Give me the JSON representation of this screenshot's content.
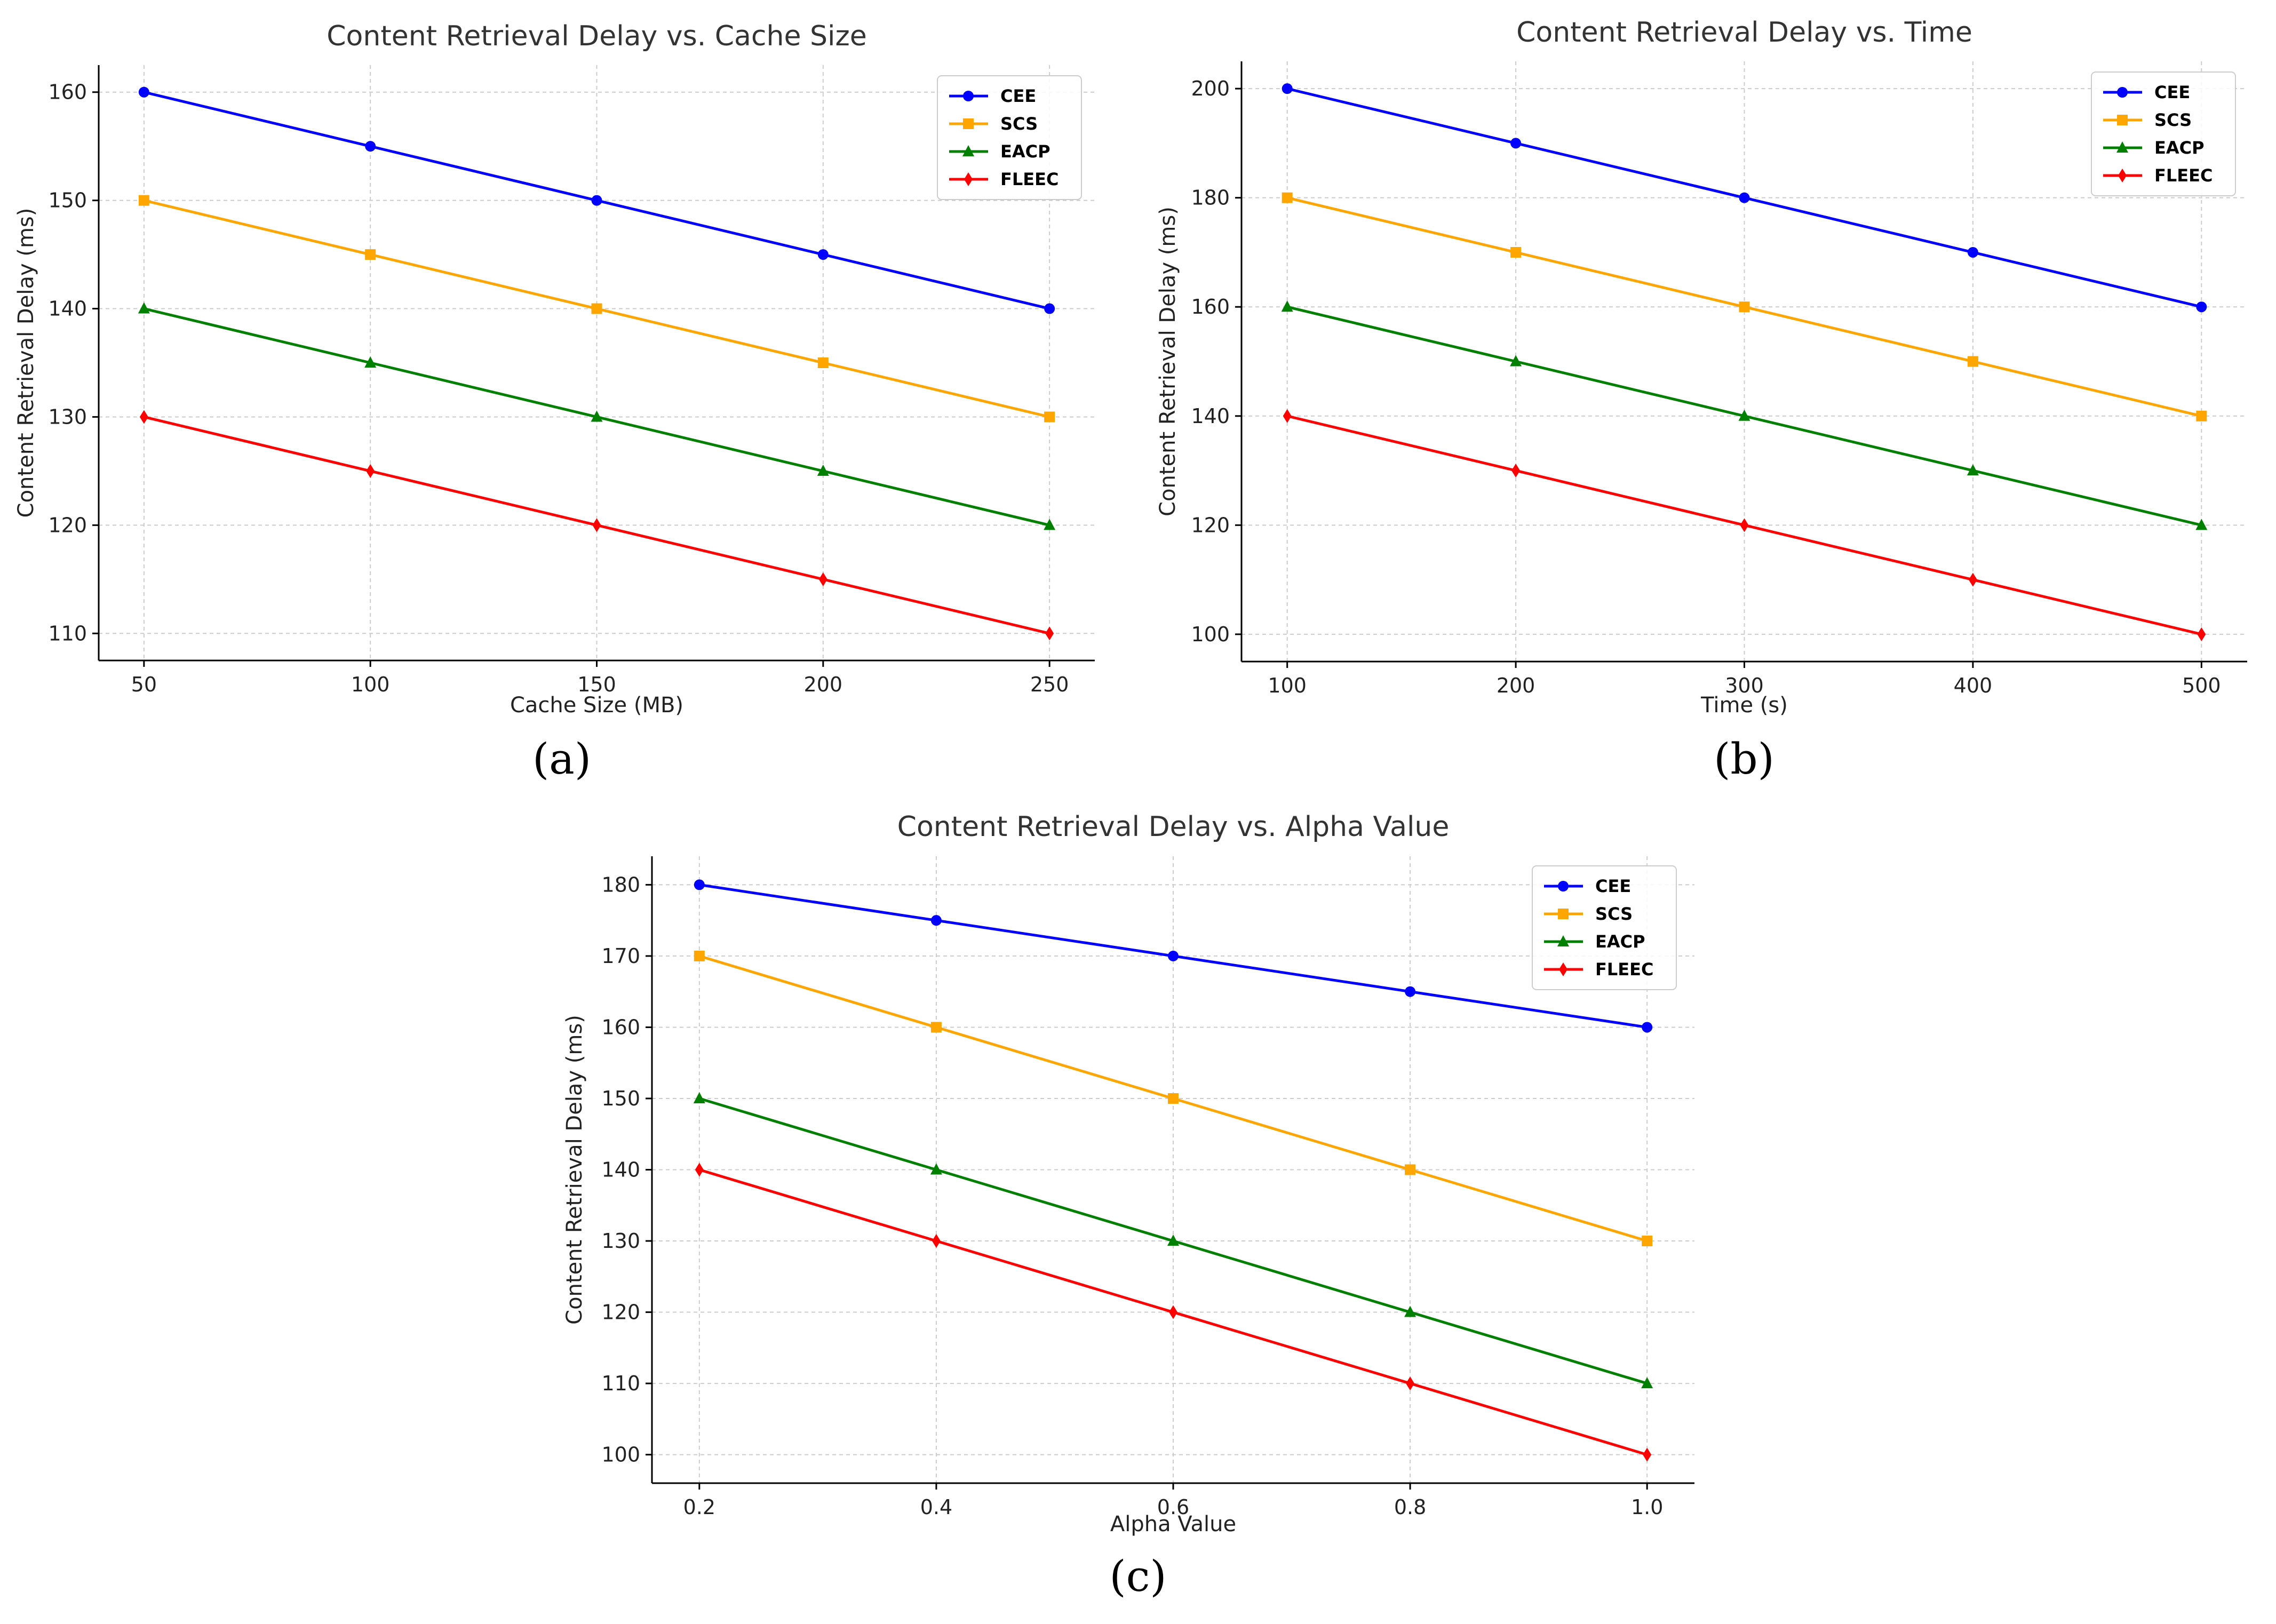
{
  "chart_data": [
    {
      "type": "line",
      "caption": "(a)",
      "title": "Content Retrieval Delay vs. Cache Size",
      "xlabel": "Cache Size (MB)",
      "ylabel": "Content Retrieval Delay (ms)",
      "x": [
        50,
        100,
        150,
        200,
        250
      ],
      "xticks": [
        "50",
        "100",
        "150",
        "200",
        "250"
      ],
      "xlim": [
        40,
        260
      ],
      "ylim": [
        107.5,
        162.5
      ],
      "yticks": [
        110,
        120,
        130,
        140,
        150,
        160
      ],
      "grid": true,
      "legend_position": "top-right",
      "series": [
        {
          "name": "CEE",
          "color": "#0000ff",
          "marker": "circle",
          "values": [
            160,
            155,
            150,
            145,
            140
          ]
        },
        {
          "name": "SCS",
          "color": "#ffa500",
          "marker": "square",
          "values": [
            150,
            145,
            140,
            135,
            130
          ]
        },
        {
          "name": "EACP",
          "color": "#008000",
          "marker": "triangle",
          "values": [
            140,
            135,
            130,
            125,
            120
          ]
        },
        {
          "name": "FLEEC",
          "color": "#ff0000",
          "marker": "diamond",
          "values": [
            130,
            125,
            120,
            115,
            110
          ]
        }
      ]
    },
    {
      "type": "line",
      "caption": "(b)",
      "title": "Content Retrieval Delay vs. Time",
      "xlabel": "Time (s)",
      "ylabel": "Content Retrieval Delay (ms)",
      "x": [
        100,
        200,
        300,
        400,
        500
      ],
      "xticks": [
        "100",
        "200",
        "300",
        "400",
        "500"
      ],
      "xlim": [
        80,
        520
      ],
      "ylim": [
        95,
        205
      ],
      "yticks": [
        100,
        120,
        140,
        160,
        180,
        200
      ],
      "grid": true,
      "legend_position": "top-right",
      "series": [
        {
          "name": "CEE",
          "color": "#0000ff",
          "marker": "circle",
          "values": [
            200,
            190,
            180,
            170,
            160
          ]
        },
        {
          "name": "SCS",
          "color": "#ffa500",
          "marker": "square",
          "values": [
            180,
            170,
            160,
            150,
            140
          ]
        },
        {
          "name": "EACP",
          "color": "#008000",
          "marker": "triangle",
          "values": [
            160,
            150,
            140,
            130,
            120
          ]
        },
        {
          "name": "FLEEC",
          "color": "#ff0000",
          "marker": "diamond",
          "values": [
            140,
            130,
            120,
            110,
            100
          ]
        }
      ]
    },
    {
      "type": "line",
      "caption": "(c)",
      "title": "Content Retrieval Delay vs. Alpha Value",
      "xlabel": "Alpha Value",
      "ylabel": "Content Retrieval Delay (ms)",
      "x": [
        0.2,
        0.4,
        0.6,
        0.8,
        1.0
      ],
      "xticks": [
        "0.2",
        "0.4",
        "0.6",
        "0.8",
        "1.0"
      ],
      "xlim": [
        0.16,
        1.04
      ],
      "ylim": [
        96,
        184
      ],
      "yticks": [
        100,
        110,
        120,
        130,
        140,
        150,
        160,
        170,
        180
      ],
      "grid": true,
      "legend_position": "top-right",
      "series": [
        {
          "name": "CEE",
          "color": "#0000ff",
          "marker": "circle",
          "values": [
            180,
            175,
            170,
            165,
            160
          ]
        },
        {
          "name": "SCS",
          "color": "#ffa500",
          "marker": "square",
          "values": [
            170,
            160,
            150,
            140,
            130
          ]
        },
        {
          "name": "EACP",
          "color": "#008000",
          "marker": "triangle",
          "values": [
            150,
            140,
            130,
            120,
            110
          ]
        },
        {
          "name": "FLEEC",
          "color": "#ff0000",
          "marker": "diamond",
          "values": [
            140,
            130,
            120,
            110,
            100
          ]
        }
      ]
    }
  ]
}
